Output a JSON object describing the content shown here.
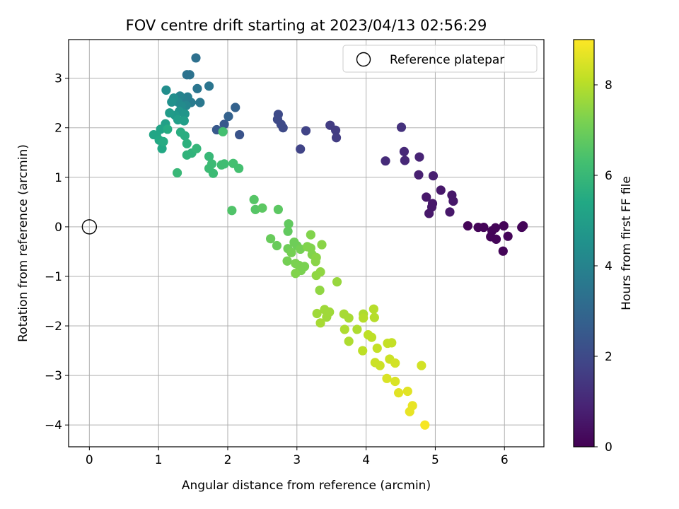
{
  "chart_data": {
    "type": "scatter",
    "title": "FOV centre drift starting at 2023/04/13 02:56:29",
    "xlabel": "Angular distance from reference (arcmin)",
    "ylabel": "Rotation from reference (arcmin)",
    "xlim": [
      -0.3,
      6.57
    ],
    "ylim": [
      -4.44,
      3.78
    ],
    "xticks": [
      0,
      1,
      2,
      3,
      4,
      5,
      6
    ],
    "yticks": [
      -4,
      -3,
      -2,
      -1,
      0,
      1,
      2,
      3
    ],
    "grid": true,
    "legend": {
      "placement": "top-right",
      "entries": [
        "Reference platepar"
      ]
    },
    "reference_point": {
      "x": 0,
      "y": 0
    },
    "colorbar": {
      "label": "Hours from first FF file",
      "range": [
        0,
        9.0
      ],
      "ticks": [
        0,
        2,
        4,
        6,
        8
      ],
      "colormap": "viridis"
    },
    "series": [
      {
        "points": [
          {
            "x": 5.47,
            "y": 0.02,
            "c": 0.1
          },
          {
            "x": 5.62,
            "y": -0.01,
            "c": 0.1
          },
          {
            "x": 5.7,
            "y": -0.01,
            "c": 0.1
          },
          {
            "x": 5.8,
            "y": -0.2,
            "c": 0.1
          },
          {
            "x": 5.82,
            "y": -0.08,
            "c": 0.1
          },
          {
            "x": 5.87,
            "y": -0.02,
            "c": 0.1
          },
          {
            "x": 5.88,
            "y": -0.25,
            "c": 0.1
          },
          {
            "x": 5.98,
            "y": -0.49,
            "c": 0.1
          },
          {
            "x": 5.99,
            "y": 0.02,
            "c": 0.1
          },
          {
            "x": 6.05,
            "y": -0.19,
            "c": 0.1
          },
          {
            "x": 6.25,
            "y": -0.01,
            "c": 0.1
          },
          {
            "x": 6.27,
            "y": 0.02,
            "c": 0.1
          },
          {
            "x": 5.08,
            "y": 0.74,
            "c": 0.6
          },
          {
            "x": 5.24,
            "y": 0.64,
            "c": 0.6
          },
          {
            "x": 5.26,
            "y": 0.52,
            "c": 0.6
          },
          {
            "x": 5.21,
            "y": 0.3,
            "c": 0.6
          },
          {
            "x": 4.87,
            "y": 0.6,
            "c": 0.6
          },
          {
            "x": 4.96,
            "y": 0.47,
            "c": 0.6
          },
          {
            "x": 4.95,
            "y": 0.4,
            "c": 0.6
          },
          {
            "x": 4.91,
            "y": 0.27,
            "c": 0.6
          },
          {
            "x": 4.97,
            "y": 1.03,
            "c": 0.8
          },
          {
            "x": 4.76,
            "y": 1.05,
            "c": 0.8
          },
          {
            "x": 4.77,
            "y": 1.41,
            "c": 0.9
          },
          {
            "x": 4.55,
            "y": 1.52,
            "c": 1.0
          },
          {
            "x": 4.56,
            "y": 1.34,
            "c": 1.0
          },
          {
            "x": 4.28,
            "y": 1.33,
            "c": 1.1
          },
          {
            "x": 4.51,
            "y": 2.01,
            "c": 1.3
          },
          {
            "x": 3.48,
            "y": 2.05,
            "c": 1.6
          },
          {
            "x": 3.56,
            "y": 1.95,
            "c": 1.6
          },
          {
            "x": 3.57,
            "y": 1.8,
            "c": 1.6
          },
          {
            "x": 3.13,
            "y": 1.94,
            "c": 1.8
          },
          {
            "x": 3.05,
            "y": 1.57,
            "c": 1.8
          },
          {
            "x": 2.73,
            "y": 2.27,
            "c": 2.0
          },
          {
            "x": 2.72,
            "y": 2.17,
            "c": 2.0
          },
          {
            "x": 2.77,
            "y": 2.07,
            "c": 2.0
          },
          {
            "x": 2.8,
            "y": 2.0,
            "c": 2.0
          },
          {
            "x": 2.17,
            "y": 1.86,
            "c": 2.3
          },
          {
            "x": 1.84,
            "y": 1.96,
            "c": 2.5
          },
          {
            "x": 1.95,
            "y": 2.07,
            "c": 2.5
          },
          {
            "x": 2.01,
            "y": 2.23,
            "c": 2.8
          },
          {
            "x": 2.11,
            "y": 2.41,
            "c": 2.8
          },
          {
            "x": 1.54,
            "y": 3.41,
            "c": 3.3
          },
          {
            "x": 1.41,
            "y": 3.07,
            "c": 3.4
          },
          {
            "x": 1.45,
            "y": 3.07,
            "c": 3.4
          },
          {
            "x": 1.56,
            "y": 2.79,
            "c": 3.5
          },
          {
            "x": 1.73,
            "y": 2.84,
            "c": 3.5
          },
          {
            "x": 1.6,
            "y": 2.51,
            "c": 3.6
          },
          {
            "x": 1.47,
            "y": 2.51,
            "c": 3.7
          },
          {
            "x": 1.42,
            "y": 2.62,
            "c": 3.8
          },
          {
            "x": 1.36,
            "y": 2.57,
            "c": 3.9
          },
          {
            "x": 1.31,
            "y": 2.64,
            "c": 4.0
          },
          {
            "x": 1.4,
            "y": 2.45,
            "c": 4.1
          },
          {
            "x": 1.28,
            "y": 2.52,
            "c": 4.2
          },
          {
            "x": 1.33,
            "y": 2.44,
            "c": 4.3
          },
          {
            "x": 1.22,
            "y": 2.6,
            "c": 4.4
          },
          {
            "x": 1.11,
            "y": 2.76,
            "c": 4.4
          },
          {
            "x": 1.19,
            "y": 2.52,
            "c": 4.5
          },
          {
            "x": 1.3,
            "y": 2.33,
            "c": 4.6
          },
          {
            "x": 1.38,
            "y": 2.28,
            "c": 4.7
          },
          {
            "x": 1.24,
            "y": 2.25,
            "c": 4.8
          },
          {
            "x": 1.16,
            "y": 2.3,
            "c": 4.9
          },
          {
            "x": 1.37,
            "y": 2.14,
            "c": 5.0
          },
          {
            "x": 1.28,
            "y": 2.16,
            "c": 5.0
          },
          {
            "x": 1.1,
            "y": 2.08,
            "c": 5.1
          },
          {
            "x": 1.03,
            "y": 1.97,
            "c": 5.2
          },
          {
            "x": 0.93,
            "y": 1.86,
            "c": 5.3
          },
          {
            "x": 0.97,
            "y": 1.85,
            "c": 5.3
          },
          {
            "x": 1.01,
            "y": 1.75,
            "c": 5.4
          },
          {
            "x": 1.05,
            "y": 1.58,
            "c": 5.4
          },
          {
            "x": 1.07,
            "y": 1.72,
            "c": 5.5
          },
          {
            "x": 1.13,
            "y": 1.97,
            "c": 5.5
          },
          {
            "x": 1.32,
            "y": 1.91,
            "c": 5.6
          },
          {
            "x": 1.38,
            "y": 1.84,
            "c": 5.6
          },
          {
            "x": 1.41,
            "y": 1.68,
            "c": 5.7
          },
          {
            "x": 1.41,
            "y": 1.45,
            "c": 5.8
          },
          {
            "x": 1.48,
            "y": 1.49,
            "c": 5.8
          },
          {
            "x": 1.55,
            "y": 1.58,
            "c": 5.9
          },
          {
            "x": 1.27,
            "y": 1.09,
            "c": 6.0
          },
          {
            "x": 1.73,
            "y": 1.42,
            "c": 6.0
          },
          {
            "x": 1.73,
            "y": 1.18,
            "c": 6.1
          },
          {
            "x": 1.79,
            "y": 1.08,
            "c": 6.1
          },
          {
            "x": 1.77,
            "y": 1.27,
            "c": 6.1
          },
          {
            "x": 1.91,
            "y": 1.25,
            "c": 6.2
          },
          {
            "x": 1.95,
            "y": 1.27,
            "c": 6.2
          },
          {
            "x": 2.08,
            "y": 1.28,
            "c": 6.3
          },
          {
            "x": 2.16,
            "y": 1.18,
            "c": 6.3
          },
          {
            "x": 1.93,
            "y": 1.92,
            "c": 6.3
          },
          {
            "x": 2.06,
            "y": 0.33,
            "c": 6.5
          },
          {
            "x": 2.38,
            "y": 0.55,
            "c": 6.6
          },
          {
            "x": 2.4,
            "y": 0.35,
            "c": 6.6
          },
          {
            "x": 2.5,
            "y": 0.38,
            "c": 6.7
          },
          {
            "x": 2.73,
            "y": 0.35,
            "c": 6.7
          },
          {
            "x": 2.88,
            "y": 0.06,
            "c": 6.8
          },
          {
            "x": 2.87,
            "y": -0.09,
            "c": 6.8
          },
          {
            "x": 2.62,
            "y": -0.24,
            "c": 6.9
          },
          {
            "x": 2.71,
            "y": -0.38,
            "c": 6.9
          },
          {
            "x": 2.87,
            "y": -0.44,
            "c": 7.0
          },
          {
            "x": 2.96,
            "y": -0.31,
            "c": 7.0
          },
          {
            "x": 3.0,
            "y": -0.38,
            "c": 7.0
          },
          {
            "x": 3.05,
            "y": -0.45,
            "c": 7.1
          },
          {
            "x": 2.92,
            "y": -0.52,
            "c": 7.1
          },
          {
            "x": 2.86,
            "y": -0.69,
            "c": 7.1
          },
          {
            "x": 2.98,
            "y": -0.74,
            "c": 7.2
          },
          {
            "x": 3.03,
            "y": -0.78,
            "c": 7.2
          },
          {
            "x": 3.11,
            "y": -0.8,
            "c": 7.2
          },
          {
            "x": 3.06,
            "y": -0.88,
            "c": 7.2
          },
          {
            "x": 2.98,
            "y": -0.94,
            "c": 7.3
          },
          {
            "x": 3.15,
            "y": -0.4,
            "c": 7.3
          },
          {
            "x": 3.2,
            "y": -0.43,
            "c": 7.3
          },
          {
            "x": 3.22,
            "y": -0.56,
            "c": 7.3
          },
          {
            "x": 3.2,
            "y": -0.16,
            "c": 7.3
          },
          {
            "x": 3.28,
            "y": -0.62,
            "c": 7.4
          },
          {
            "x": 3.27,
            "y": -0.7,
            "c": 7.4
          },
          {
            "x": 3.36,
            "y": -0.36,
            "c": 7.4
          },
          {
            "x": 3.28,
            "y": -0.98,
            "c": 7.5
          },
          {
            "x": 3.34,
            "y": -0.91,
            "c": 7.5
          },
          {
            "x": 3.33,
            "y": -1.28,
            "c": 7.5
          },
          {
            "x": 3.58,
            "y": -1.11,
            "c": 7.6
          },
          {
            "x": 3.29,
            "y": -1.75,
            "c": 7.7
          },
          {
            "x": 3.4,
            "y": -1.67,
            "c": 7.7
          },
          {
            "x": 3.43,
            "y": -1.82,
            "c": 7.7
          },
          {
            "x": 3.47,
            "y": -1.72,
            "c": 7.7
          },
          {
            "x": 3.34,
            "y": -1.94,
            "c": 7.8
          },
          {
            "x": 3.68,
            "y": -1.76,
            "c": 7.8
          },
          {
            "x": 3.75,
            "y": -1.84,
            "c": 7.8
          },
          {
            "x": 3.69,
            "y": -2.07,
            "c": 7.9
          },
          {
            "x": 3.87,
            "y": -2.07,
            "c": 7.9
          },
          {
            "x": 3.75,
            "y": -2.31,
            "c": 7.9
          },
          {
            "x": 3.96,
            "y": -1.76,
            "c": 7.9
          },
          {
            "x": 3.96,
            "y": -1.84,
            "c": 8.0
          },
          {
            "x": 4.11,
            "y": -1.66,
            "c": 8.0
          },
          {
            "x": 4.12,
            "y": -1.83,
            "c": 8.0
          },
          {
            "x": 4.03,
            "y": -2.18,
            "c": 8.1
          },
          {
            "x": 4.08,
            "y": -2.23,
            "c": 8.1
          },
          {
            "x": 3.95,
            "y": -2.5,
            "c": 8.1
          },
          {
            "x": 4.16,
            "y": -2.45,
            "c": 8.2
          },
          {
            "x": 4.31,
            "y": -2.35,
            "c": 8.2
          },
          {
            "x": 4.37,
            "y": -2.34,
            "c": 8.2
          },
          {
            "x": 4.13,
            "y": -2.74,
            "c": 8.3
          },
          {
            "x": 4.2,
            "y": -2.8,
            "c": 8.3
          },
          {
            "x": 4.34,
            "y": -2.67,
            "c": 8.3
          },
          {
            "x": 4.42,
            "y": -2.75,
            "c": 8.4
          },
          {
            "x": 4.8,
            "y": -2.8,
            "c": 8.4
          },
          {
            "x": 4.3,
            "y": -3.06,
            "c": 8.5
          },
          {
            "x": 4.42,
            "y": -3.12,
            "c": 8.5
          },
          {
            "x": 4.47,
            "y": -3.35,
            "c": 8.6
          },
          {
            "x": 4.6,
            "y": -3.32,
            "c": 8.6
          },
          {
            "x": 4.67,
            "y": -3.61,
            "c": 8.7
          },
          {
            "x": 4.63,
            "y": -3.73,
            "c": 8.7
          },
          {
            "x": 4.85,
            "y": -4.0,
            "c": 8.9
          }
        ]
      }
    ]
  }
}
